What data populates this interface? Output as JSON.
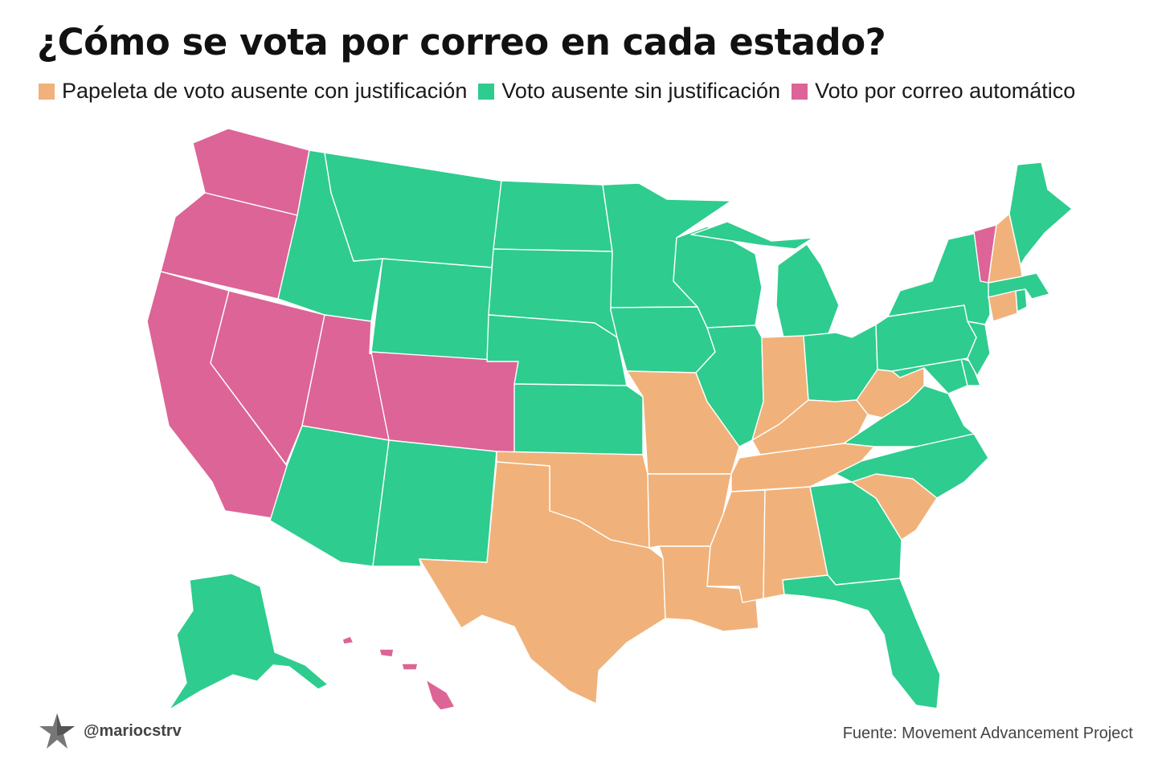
{
  "title": "¿Cómo se vota por correo en cada estado?",
  "legend": [
    {
      "key": "excuse",
      "label": "Papeleta de voto ausente con justificación",
      "color": "#F0B27A"
    },
    {
      "key": "no_excuse",
      "label": "Voto ausente sin justificación",
      "color": "#2ECC8F"
    },
    {
      "key": "all_mail",
      "label": "Voto por correo automático",
      "color": "#DD6496"
    }
  ],
  "states": {
    "WA": "all_mail",
    "OR": "all_mail",
    "CA": "all_mail",
    "NV": "all_mail",
    "UT": "all_mail",
    "CO": "all_mail",
    "HI": "all_mail",
    "VT": "all_mail",
    "ID": "no_excuse",
    "MT": "no_excuse",
    "WY": "no_excuse",
    "ND": "no_excuse",
    "SD": "no_excuse",
    "NE": "no_excuse",
    "KS": "no_excuse",
    "MN": "no_excuse",
    "IA": "no_excuse",
    "WI": "no_excuse",
    "IL": "no_excuse",
    "MI": "no_excuse",
    "OH": "no_excuse",
    "PA": "no_excuse",
    "NY": "no_excuse",
    "ME": "no_excuse",
    "MA": "no_excuse",
    "RI": "no_excuse",
    "NJ": "no_excuse",
    "DE": "no_excuse",
    "MD": "no_excuse",
    "VA": "no_excuse",
    "NC": "no_excuse",
    "GA": "no_excuse",
    "FL": "no_excuse",
    "AZ": "no_excuse",
    "NM": "no_excuse",
    "AK": "no_excuse",
    "TX": "excuse",
    "OK": "excuse",
    "MO": "excuse",
    "AR": "excuse",
    "LA": "excuse",
    "MS": "excuse",
    "AL": "excuse",
    "TN": "excuse",
    "KY": "excuse",
    "IN": "excuse",
    "WV": "excuse",
    "SC": "excuse",
    "NH": "excuse",
    "CT": "excuse"
  },
  "footer": {
    "handle": "@mariocstrv",
    "source": "Fuente: Movement Advancement Project"
  }
}
